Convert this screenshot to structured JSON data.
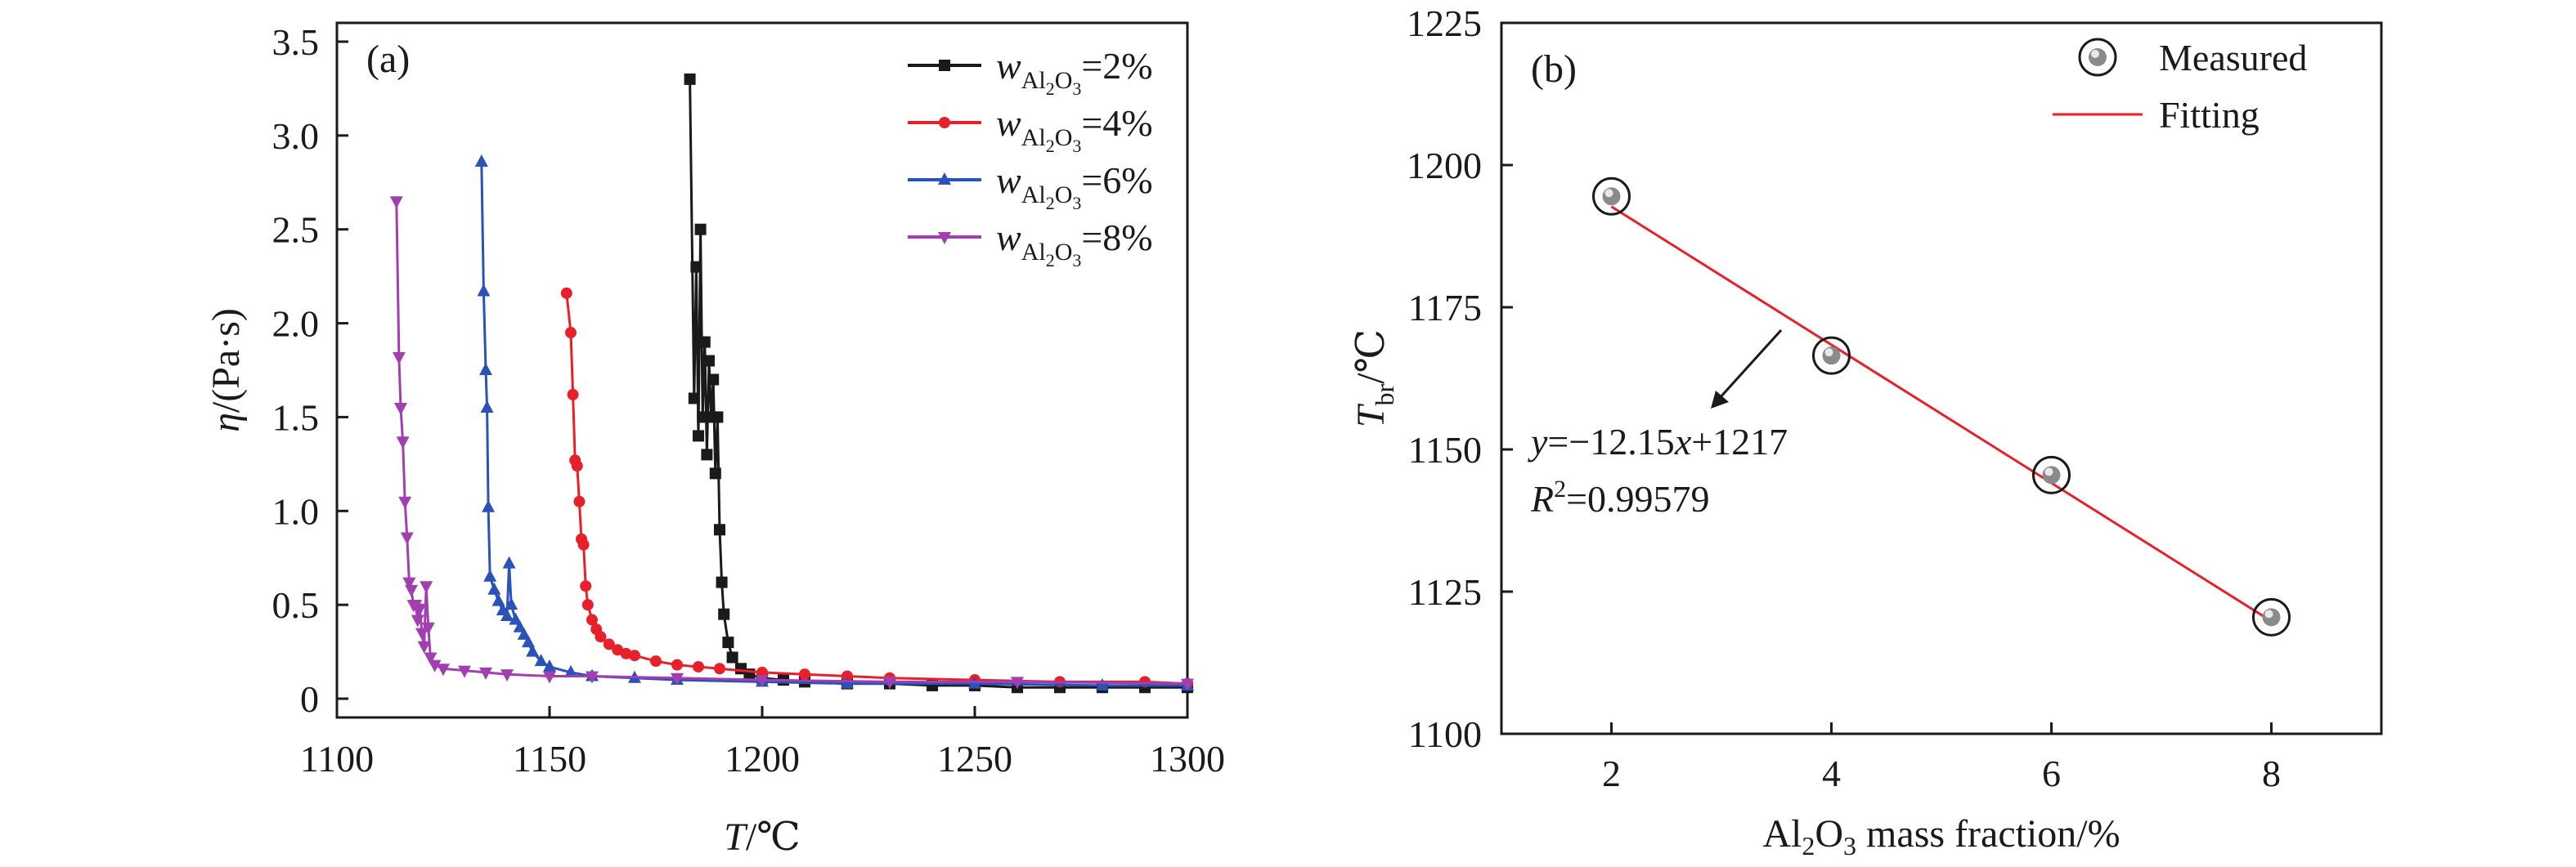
{
  "chart_data": [
    {
      "panel": "(a)",
      "type": "line",
      "xlim": [
        1100,
        1300
      ],
      "ylim": [
        -0.1,
        3.6
      ],
      "xticks": [
        1100,
        1150,
        1200,
        1250,
        1300
      ],
      "yticks": [
        0,
        0.5,
        1.0,
        1.5,
        2.0,
        2.5,
        3.0,
        3.5
      ],
      "xtick_labels": [
        "1100",
        "1150",
        "1200",
        "1250",
        "1300"
      ],
      "ytick_labels": [
        "0",
        "0.5",
        "1.0",
        "1.5",
        "2.0",
        "2.5",
        "3.0",
        "3.5"
      ],
      "xlabel": {
        "var": "T",
        "unit": "/℃"
      },
      "ylabel": {
        "var": "η",
        "unit": "/(Pa·s)"
      },
      "legend_position": "top-right",
      "grid": false,
      "series": [
        {
          "name": "wAl2O3=2%",
          "label": {
            "var": "w",
            "sub": "Al",
            "sub2": "2",
            "sub3": "O",
            "sub4": "3",
            "value": "=2%"
          },
          "color": "#1a1a1a",
          "marker": "square",
          "x": [
            1183,
            1184,
            1184.5,
            1185,
            1185.5,
            1186,
            1186.5,
            1187,
            1187.5,
            1188,
            1188.5,
            1189,
            1189.5,
            1190,
            1190.5,
            1191,
            1192,
            1193,
            1195,
            1197,
            1200,
            1205,
            1210,
            1220,
            1230,
            1240,
            1250,
            1260,
            1270,
            1280,
            1290,
            1300
          ],
          "y": [
            3.3,
            1.6,
            2.3,
            1.4,
            2.5,
            1.5,
            1.9,
            1.3,
            1.8,
            1.5,
            1.7,
            1.2,
            1.5,
            0.9,
            0.62,
            0.45,
            0.3,
            0.22,
            0.16,
            0.13,
            0.11,
            0.1,
            0.09,
            0.08,
            0.08,
            0.07,
            0.07,
            0.06,
            0.06,
            0.06,
            0.06,
            0.06
          ]
        },
        {
          "name": "wAl2O3=4%",
          "label": {
            "var": "w",
            "sub": "Al",
            "sub2": "2",
            "sub3": "O",
            "sub4": "3",
            "value": "=4%"
          },
          "color": "#e8202a",
          "marker": "circle",
          "x": [
            1154,
            1155,
            1155.5,
            1156,
            1156.5,
            1157,
            1157.5,
            1158,
            1158.5,
            1159,
            1160,
            1161,
            1162,
            1164,
            1166,
            1168,
            1170,
            1175,
            1180,
            1185,
            1190,
            1200,
            1210,
            1220,
            1230,
            1250,
            1270,
            1290,
            1300
          ],
          "y": [
            2.16,
            1.95,
            1.62,
            1.27,
            1.24,
            1.05,
            0.85,
            0.82,
            0.6,
            0.5,
            0.42,
            0.37,
            0.33,
            0.29,
            0.26,
            0.24,
            0.23,
            0.2,
            0.18,
            0.17,
            0.16,
            0.14,
            0.13,
            0.12,
            0.11,
            0.1,
            0.09,
            0.09,
            0.08
          ]
        },
        {
          "name": "wAl2O3=6%",
          "label": {
            "var": "w",
            "sub": "Al",
            "sub2": "2",
            "sub3": "O",
            "sub4": "3",
            "value": "=6%"
          },
          "color": "#2a52b8",
          "marker": "triangle-up",
          "x": [
            1134,
            1134.5,
            1135,
            1135.3,
            1135.6,
            1136,
            1137,
            1138,
            1139,
            1140,
            1140.5,
            1141,
            1142,
            1143,
            1144,
            1145,
            1146,
            1148,
            1150,
            1155,
            1160,
            1170,
            1180,
            1200,
            1220,
            1250,
            1280,
            1300
          ],
          "y": [
            2.86,
            2.17,
            1.75,
            1.55,
            1.02,
            0.65,
            0.58,
            0.52,
            0.47,
            0.44,
            0.72,
            0.5,
            0.42,
            0.38,
            0.34,
            0.3,
            0.25,
            0.2,
            0.17,
            0.14,
            0.12,
            0.11,
            0.1,
            0.09,
            0.08,
            0.08,
            0.07,
            0.07
          ]
        },
        {
          "name": "wAl2O3=8%",
          "label": {
            "var": "w",
            "sub": "Al",
            "sub2": "2",
            "sub3": "O",
            "sub4": "3",
            "value": "=8%"
          },
          "color": "#a23fb0",
          "marker": "triangle-down",
          "x": [
            1114,
            1114.6,
            1115,
            1115.5,
            1116,
            1116.5,
            1117,
            1117.5,
            1118,
            1118.5,
            1119,
            1119.5,
            1120,
            1120.5,
            1121,
            1121.5,
            1122,
            1123,
            1125,
            1130,
            1135,
            1140,
            1150,
            1160,
            1180,
            1200,
            1230,
            1260,
            1300
          ],
          "y": [
            2.65,
            1.82,
            1.55,
            1.37,
            1.05,
            0.86,
            0.62,
            0.58,
            0.5,
            0.5,
            0.42,
            0.48,
            0.35,
            0.28,
            0.6,
            0.38,
            0.22,
            0.18,
            0.16,
            0.15,
            0.14,
            0.13,
            0.12,
            0.12,
            0.11,
            0.1,
            0.09,
            0.09,
            0.08
          ]
        }
      ]
    },
    {
      "panel": "(b)",
      "type": "scatter",
      "xlim": [
        1,
        9
      ],
      "ylim": [
        1100,
        1225
      ],
      "xticks": [
        2,
        4,
        6,
        8
      ],
      "yticks": [
        1100,
        1125,
        1150,
        1175,
        1200,
        1225
      ],
      "xtick_labels": [
        "2",
        "4",
        "6",
        "8"
      ],
      "ytick_labels": [
        "1100",
        "1125",
        "1150",
        "1175",
        "1200",
        "1225"
      ],
      "xlabel": {
        "pre": "Al",
        "s1": "2",
        "mid": "O",
        "s2": "3",
        "post": " mass fraction/%"
      },
      "ylabel": {
        "var": "T",
        "sub": "br",
        "unit": "/℃"
      },
      "legend_position": "top-right",
      "grid": false,
      "series": [
        {
          "name": "Measured",
          "color": "#808080",
          "marker": "circle",
          "x": [
            2,
            4,
            6,
            8
          ],
          "y": [
            1194.5,
            1166.5,
            1145.5,
            1120.5
          ]
        },
        {
          "name": "Fitting",
          "color": "#e8202a",
          "marker": "none",
          "x": [
            2,
            8
          ],
          "y": [
            1192.7,
            1119.8
          ]
        }
      ],
      "annotation": {
        "equation": {
          "y": "y",
          "eq": "=−12.15",
          "x": "x",
          "rest": "+1217"
        },
        "r2": {
          "r": "R",
          "sup": "2",
          "val": "=0.99579"
        }
      }
    }
  ]
}
